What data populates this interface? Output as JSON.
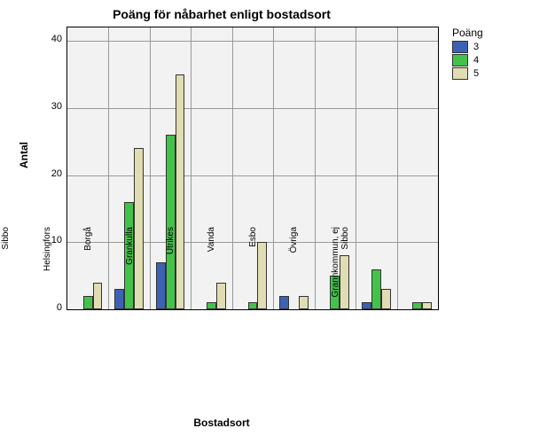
{
  "chart": {
    "type": "bar",
    "title": "Poäng för nåbarhet enligt bostadsort",
    "title_fontsize": 14,
    "y_label": "Antal",
    "x_label": "Bostadsort",
    "label_fontsize": 12,
    "ylim": [
      0,
      42
    ],
    "yticks": [
      0,
      10,
      20,
      30,
      40
    ],
    "plot_bg": "#f2f2f2",
    "page_bg": "#ffffff",
    "grid_color": "#999999",
    "categories": [
      "Sibbo",
      "Helsingfors",
      "Borgå",
      "Grankulla",
      "Utrikes",
      "Vanda",
      "Esbo",
      "Övriga",
      "Grannkommun, ej Sibbo"
    ],
    "legend_title": "Poäng",
    "series": [
      {
        "label": "3",
        "color": "#3c62b4",
        "values": [
          0,
          3,
          7,
          0,
          0,
          2,
          0,
          1,
          0
        ]
      },
      {
        "label": "4",
        "color": "#43c24a",
        "values": [
          2,
          16,
          26,
          1,
          1,
          0,
          5,
          6,
          1
        ]
      },
      {
        "label": "5",
        "color": "#e0ddb2",
        "values": [
          4,
          24,
          35,
          4,
          10,
          2,
          8,
          3,
          1
        ]
      }
    ]
  }
}
